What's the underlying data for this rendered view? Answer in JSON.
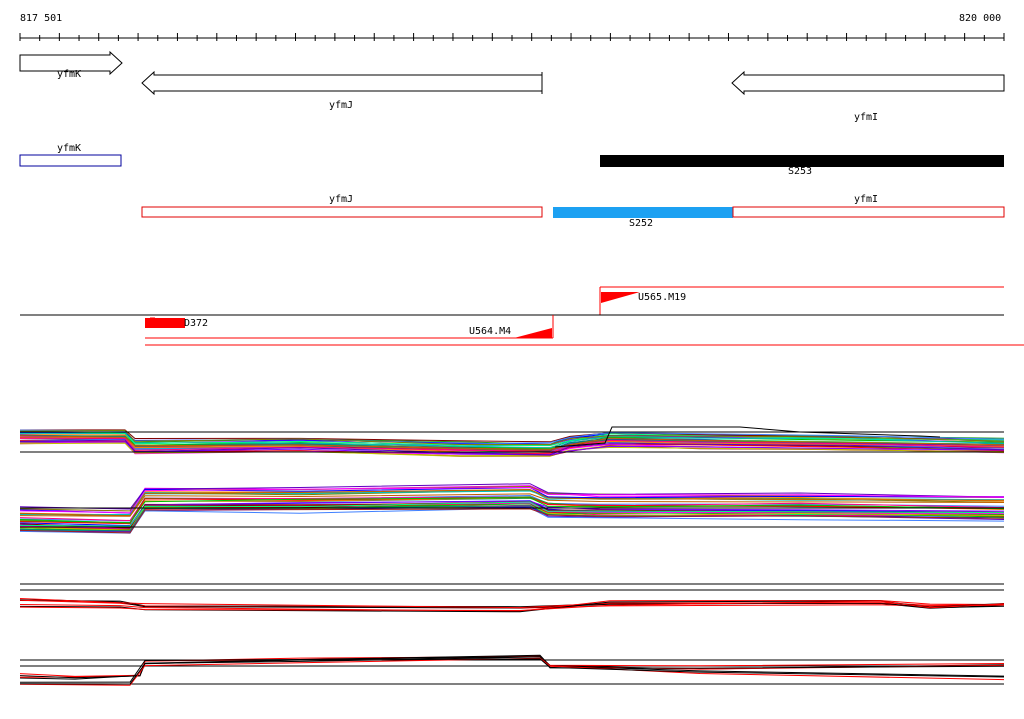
{
  "ruler": {
    "start_label": "817 501",
    "end_label": "820 000"
  },
  "genes": {
    "arrow_yfmK": {
      "label": "yfmK",
      "direction": "forward"
    },
    "arrow_yfmJ": {
      "label": "yfmJ",
      "direction": "reverse"
    },
    "arrow_yfmI": {
      "label": "yfmI",
      "direction": "reverse"
    }
  },
  "annotations": {
    "box_yfmK": {
      "label": "yfmK",
      "color": "#00009c"
    },
    "box_yfmJ": {
      "label": "yfmJ",
      "color": "#e00000"
    },
    "box_yfmI": {
      "label": "yfmI",
      "color": "#e00000"
    },
    "S253": {
      "label": "S253",
      "color": "#000000"
    },
    "S252": {
      "label": "S252",
      "color": "#1da1f2"
    }
  },
  "features": {
    "U565": {
      "label": "U565.M19"
    },
    "U564": {
      "label": "U564.M4"
    },
    "D372": {
      "label": "D372"
    }
  },
  "colors": {
    "feature_red": "#ff0000",
    "track_black": "#000000"
  }
}
